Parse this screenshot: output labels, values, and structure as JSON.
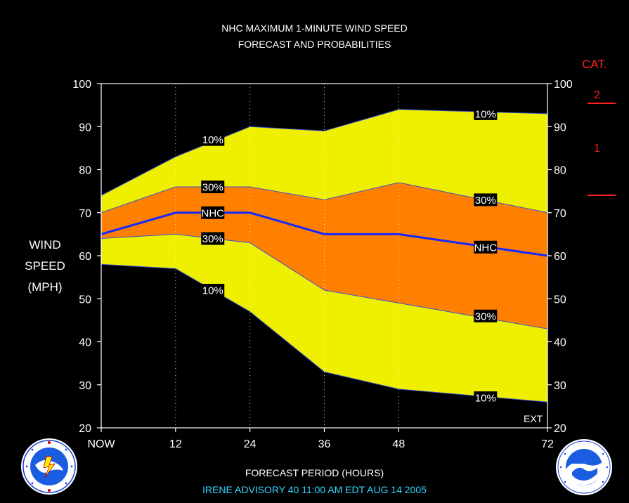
{
  "title_line1": "NHC MAXIMUM 1-MINUTE WIND SPEED",
  "title_line2": "FORECAST AND PROBABILITIES",
  "ylabel_line1": "WIND",
  "ylabel_line2": "SPEED",
  "ylabel_line3": "(MPH)",
  "xlabel": "FORECAST PERIOD (HOURS)",
  "advisory": "IRENE    ADVISORY  40  11:00  AM  EDT  AUG  14  2005",
  "ext_label": "EXT",
  "category": {
    "title": "CAT.",
    "levels": [
      {
        "label": "2",
        "lower_bound_mph": 96
      },
      {
        "label": "1",
        "lower_bound_mph": 74
      }
    ]
  },
  "colors": {
    "outer_band": "#eef000",
    "inner_band": "#ff8000",
    "nhc_line": "#1428ff",
    "category": "#ff2020",
    "advisory": "#33d6ff"
  },
  "chart_data": {
    "type": "area",
    "x_ticks": [
      {
        "value": 0,
        "label": "NOW"
      },
      {
        "value": 12,
        "label": "12"
      },
      {
        "value": 24,
        "label": "24"
      },
      {
        "value": 36,
        "label": "36"
      },
      {
        "value": 48,
        "label": "48"
      },
      {
        "value": 72,
        "label": "72"
      }
    ],
    "y_ticks": [
      20,
      30,
      40,
      50,
      60,
      70,
      80,
      90,
      100
    ],
    "xlim": [
      0,
      72
    ],
    "ylim": [
      20,
      100
    ],
    "x": [
      0,
      12,
      24,
      36,
      48,
      72
    ],
    "series": [
      {
        "name": "10%",
        "role": "upper_outer",
        "values": [
          74,
          83,
          90,
          89,
          94,
          93
        ]
      },
      {
        "name": "30%",
        "role": "upper_inner",
        "values": [
          70,
          76,
          76,
          73,
          77,
          70
        ]
      },
      {
        "name": "NHC",
        "role": "forecast",
        "values": [
          65,
          70,
          70,
          65,
          65,
          60
        ]
      },
      {
        "name": "30%",
        "role": "lower_inner",
        "values": [
          64,
          65,
          63,
          52,
          49,
          43
        ]
      },
      {
        "name": "10%",
        "role": "lower_outer",
        "values": [
          58,
          57,
          47,
          33,
          29,
          26
        ]
      }
    ],
    "labels": [
      {
        "text": "10%",
        "x": 18,
        "y": 87
      },
      {
        "text": "30%",
        "x": 18,
        "y": 76
      },
      {
        "text": "NHC",
        "x": 18,
        "y": 70
      },
      {
        "text": "30%",
        "x": 18,
        "y": 64
      },
      {
        "text": "10%",
        "x": 18,
        "y": 52
      },
      {
        "text": "10%",
        "x": 62,
        "y": 93
      },
      {
        "text": "30%",
        "x": 62,
        "y": 73
      },
      {
        "text": "NHC",
        "x": 62,
        "y": 62
      },
      {
        "text": "30%",
        "x": 62,
        "y": 46
      },
      {
        "text": "10%",
        "x": 62,
        "y": 27
      }
    ]
  }
}
